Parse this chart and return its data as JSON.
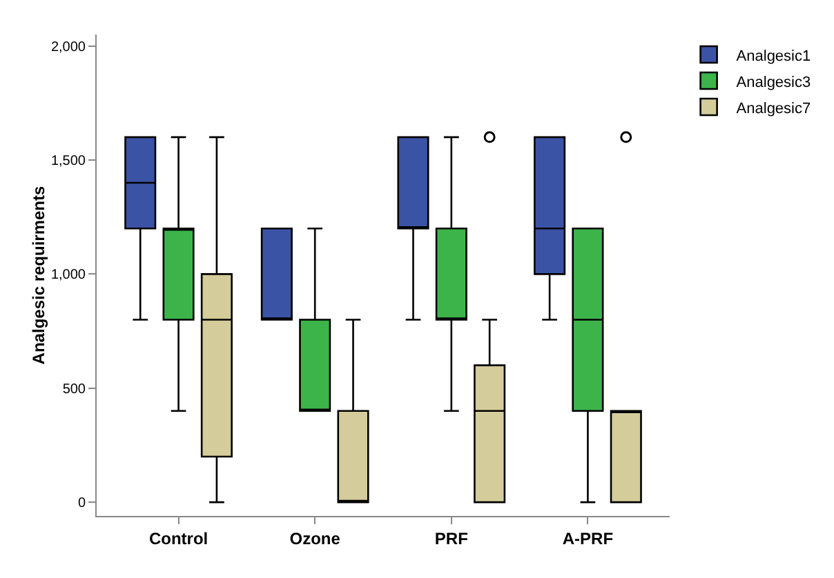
{
  "chart_data": {
    "type": "box",
    "ylabel": "Analgesic requirments",
    "categories": [
      "Control",
      "Ozone",
      "PRF",
      "A-PRF"
    ],
    "ylim": [
      -60,
      2050
    ],
    "yticks": [
      0,
      500,
      {
        "value": 1000,
        "label": "1,000"
      },
      {
        "value": 1500,
        "label": "1,500"
      },
      {
        "value": 2000,
        "label": "2,000"
      }
    ],
    "grid": false,
    "legend": "top right",
    "marker": "circle",
    "series": [
      {
        "name": "Analgesic1",
        "color": "#3a53a4",
        "boxes": [
          {
            "low": 800,
            "q1": 1200,
            "median": 1400,
            "q3": 1600,
            "high": 1600
          },
          {
            "low": 800,
            "q1": 800,
            "median": 800,
            "q3": 1200,
            "high": 1200
          },
          {
            "low": 800,
            "q1": 1200,
            "median": 1200,
            "q3": 1600,
            "high": 1600
          },
          {
            "low": 800,
            "q1": 1000,
            "median": 1200,
            "q3": 1600,
            "high": 1600
          }
        ]
      },
      {
        "name": "Analgesic3",
        "color": "#3cb44a",
        "boxes": [
          {
            "low": 400,
            "q1": 800,
            "median": 1200,
            "q3": 1200,
            "high": 1600
          },
          {
            "low": 400,
            "q1": 400,
            "median": 400,
            "q3": 800,
            "high": 1200
          },
          {
            "low": 400,
            "q1": 800,
            "median": 800,
            "q3": 1200,
            "high": 1600
          },
          {
            "low": 0,
            "q1": 400,
            "median": 800,
            "q3": 1200,
            "high": 1200
          }
        ]
      },
      {
        "name": "Analgesic7",
        "color": "#d4cc9a",
        "boxes": [
          {
            "low": 0,
            "q1": 200,
            "median": 800,
            "q3": 1000,
            "high": 1600
          },
          {
            "low": 0,
            "q1": 0,
            "median": 0,
            "q3": 400,
            "high": 800
          },
          {
            "low": 0,
            "q1": 0,
            "median": 400,
            "q3": 600,
            "high": 800,
            "outliers": [
              1600
            ]
          },
          {
            "low": 0,
            "q1": 0,
            "median": 400,
            "q3": 400,
            "high": 400,
            "outliers": [
              1600
            ]
          }
        ]
      }
    ]
  }
}
